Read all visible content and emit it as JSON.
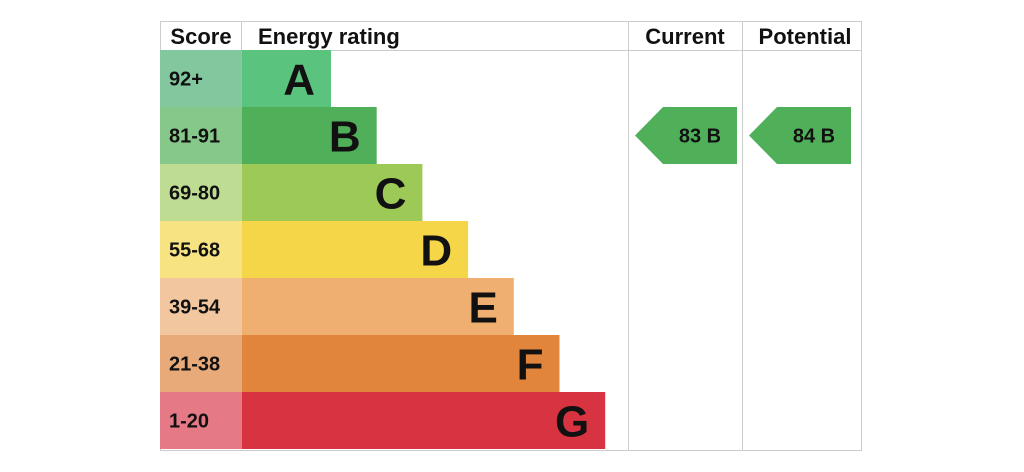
{
  "chart_data": {
    "type": "bar",
    "headers": {
      "score": "Score",
      "rating": "Energy rating",
      "current": "Current",
      "potential": "Potential"
    },
    "bands": [
      {
        "letter": "A",
        "range": "92+",
        "color": "#5ac47f",
        "score_bg": "#82c79e"
      },
      {
        "letter": "B",
        "range": "81-91",
        "color": "#4fb059",
        "score_bg": "#86c78a"
      },
      {
        "letter": "C",
        "range": "69-80",
        "color": "#9dca57",
        "score_bg": "#bfdd92"
      },
      {
        "letter": "D",
        "range": "55-68",
        "color": "#f6d649",
        "score_bg": "#f8e383"
      },
      {
        "letter": "E",
        "range": "39-54",
        "color": "#eeaf70",
        "score_bg": "#f2c7a0"
      },
      {
        "letter": "F",
        "range": "21-38",
        "color": "#e1843c",
        "score_bg": "#e8aa78"
      },
      {
        "letter": "G",
        "range": "1-20",
        "color": "#d83341",
        "score_bg": "#e57985"
      }
    ],
    "current": {
      "value": 83,
      "letter": "B",
      "label": "83  B",
      "color": "#4fb059"
    },
    "potential": {
      "value": 84,
      "letter": "B",
      "label": "84  B",
      "color": "#4fb059"
    }
  }
}
